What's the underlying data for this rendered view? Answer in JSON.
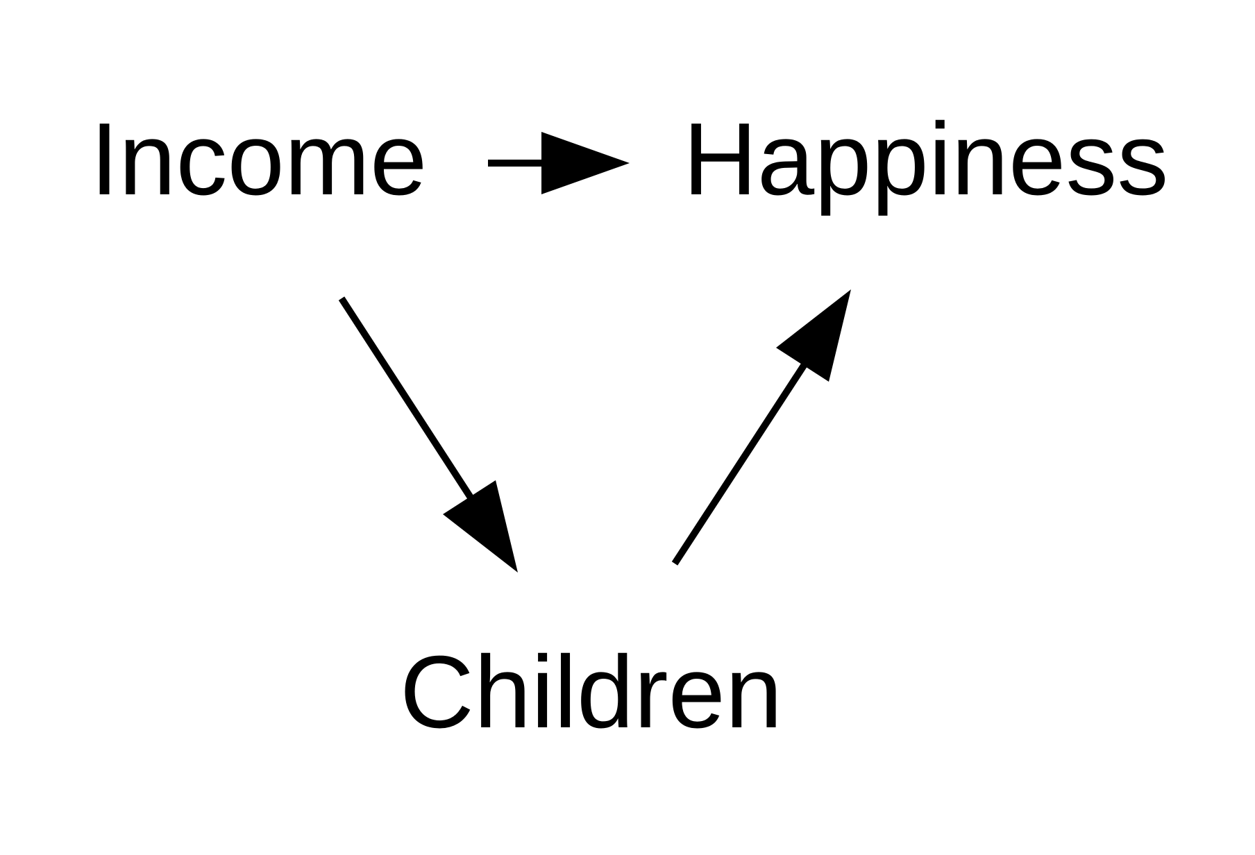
{
  "diagram": {
    "type": "directed-graph",
    "nodes": [
      {
        "id": "income",
        "label": "Income"
      },
      {
        "id": "happiness",
        "label": "Happiness"
      },
      {
        "id": "children",
        "label": "Children"
      }
    ],
    "edges": [
      {
        "from": "income",
        "to": "happiness"
      },
      {
        "from": "income",
        "to": "children"
      },
      {
        "from": "children",
        "to": "happiness"
      }
    ],
    "colors": {
      "background": "#ffffff",
      "ink": "#000000"
    }
  }
}
